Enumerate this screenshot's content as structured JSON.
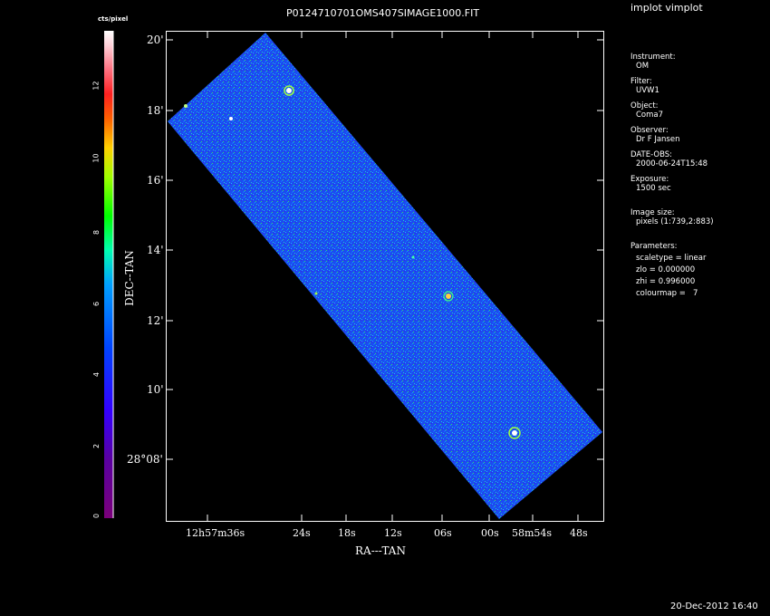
{
  "window_title": "implot vimplot",
  "plot_title": "P0124710701OMS407SIMAGE1000.FIT",
  "colorbar": {
    "label": "cts/pixel",
    "ticks": [
      "0",
      "2",
      "4",
      "6",
      "8",
      "10",
      "12"
    ]
  },
  "axes": {
    "xlabel": "RA---TAN",
    "ylabel": "DEC--TAN",
    "y_ticks": [
      "20'",
      "18'",
      "16'",
      "14'",
      "12'",
      "10'",
      "28°08'"
    ],
    "x_ticks": [
      {
        "label": "12h57m36s"
      },
      {
        "label": "24s"
      },
      {
        "label": "18s"
      },
      {
        "label": "12s"
      },
      {
        "label": "06s"
      },
      {
        "label": "00s"
      },
      {
        "label": "58m54s"
      },
      {
        "label": "48s"
      }
    ]
  },
  "info": {
    "instrument_label": "Instrument:",
    "instrument_value": "OM",
    "filter_label": "Filter:",
    "filter_value": "UVW1",
    "object_label": "Object:",
    "object_value": "Coma7",
    "observer_label": "Observer:",
    "observer_value": "Dr F Jansen",
    "date_label": "DATE-OBS:",
    "date_value": "2000-06-24T15:48",
    "exposure_label": "Exposure:",
    "exposure_value": "1500 sec",
    "size_label": "Image size:",
    "size_value": "pixels (1:739,2:883)",
    "params_label": "Parameters:",
    "param_scale": "scaletype = linear",
    "param_zlo": "zlo = 0.000000",
    "param_zhi": "zhi = 0.996000",
    "param_cmap": "colourmap =   7"
  },
  "timestamp": "20-Dec-2012 16:40",
  "colors": {
    "image_fill": "#1c4cf0",
    "axis": "#ffffff",
    "background": "#000000"
  }
}
